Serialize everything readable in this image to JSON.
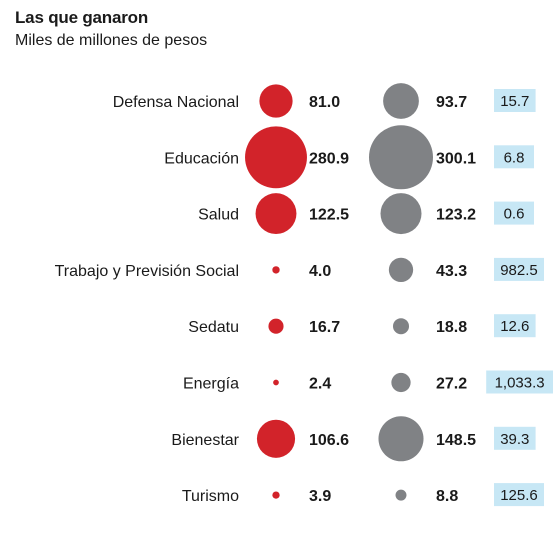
{
  "title": "Las que ganaron",
  "subtitle": "Miles de millones de pesos",
  "colors": {
    "series_a": "#d2232a",
    "series_b": "#808285",
    "badge_bg": "#c7e7f5"
  },
  "chart_data": {
    "type": "bubble",
    "categories": [
      "Defensa Nacional",
      "Educación",
      "Salud",
      "Trabajo y Previsión Social",
      "Sedatu",
      "Energía",
      "Bienestar",
      "Turismo"
    ],
    "series": [
      {
        "values": [
          81.0,
          280.9,
          122.5,
          4.0,
          16.7,
          2.4,
          106.6,
          3.9
        ],
        "labels": [
          "81.0",
          "280.9",
          "122.5",
          "4.0",
          "16.7",
          "2.4",
          "106.6",
          "3.9"
        ]
      },
      {
        "values": [
          93.7,
          300.1,
          123.2,
          43.3,
          18.8,
          27.2,
          148.5,
          8.8
        ],
        "labels": [
          "93.7",
          "300.1",
          "123.2",
          "43.3",
          "18.8",
          "27.2",
          "148.5",
          "8.8"
        ]
      }
    ],
    "change_labels": [
      "15.7",
      "6.8",
      "0.6",
      "982.5",
      "12.6",
      "1,033.3",
      "39.3",
      "125.6"
    ]
  }
}
